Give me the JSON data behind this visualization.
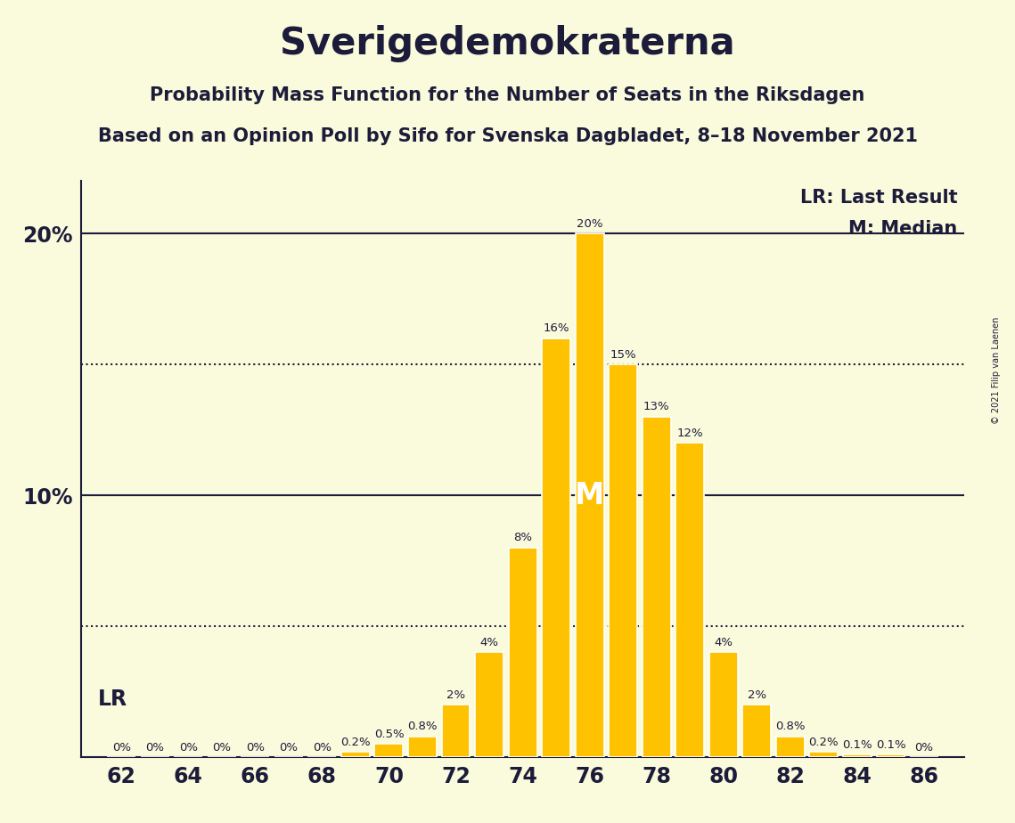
{
  "title": "Sverigedemokraterna",
  "subtitle1": "Probability Mass Function for the Number of Seats in the Riksdagen",
  "subtitle2": "Based on an Opinion Poll by Sifo for Svenska Dagbladet, 8–18 November 2021",
  "copyright": "© 2021 Filip van Laenen",
  "seats": [
    62,
    63,
    64,
    65,
    66,
    67,
    68,
    69,
    70,
    71,
    72,
    73,
    74,
    75,
    76,
    77,
    78,
    79,
    80,
    81,
    82,
    83,
    84,
    85,
    86
  ],
  "probabilities": [
    0.0,
    0.0,
    0.0,
    0.0,
    0.0,
    0.0,
    0.0,
    0.2,
    0.5,
    0.8,
    2.0,
    4.0,
    8.0,
    16.0,
    20.0,
    15.0,
    13.0,
    12.0,
    4.0,
    2.0,
    0.8,
    0.2,
    0.1,
    0.1,
    0.0
  ],
  "bar_color": "#FFC200",
  "background_color": "#FAFADC",
  "text_color": "#1C1C3A",
  "median_seat": 76,
  "last_result_seat": 62,
  "dotted_line_values": [
    5.0,
    15.0
  ],
  "ylim": [
    0,
    22
  ],
  "bar_width": 0.85,
  "label_fontsize": 9.5,
  "ytick_fontsize": 17,
  "xtick_fontsize": 17,
  "title_fontsize": 30,
  "subtitle_fontsize": 15,
  "legend_fontsize": 15,
  "lr_fontsize": 17,
  "m_fontsize": 24,
  "copyright_fontsize": 7
}
